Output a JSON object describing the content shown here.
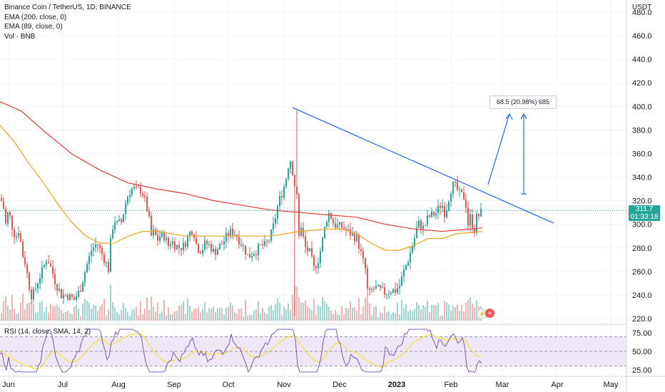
{
  "legend": {
    "title": "Binance Coin / TetherUS, 1D, BINANCE",
    "ema200": "EMA (200, close, 0)",
    "ema89": "EMA (89, close, 0)",
    "vol": "Vol · BNB",
    "rsi": "RSI (14, close, SMA, 14, 2)"
  },
  "currency": "USDT",
  "last_price": {
    "value": "311.7",
    "countdown": "01:33:18"
  },
  "annotation": "68.5 (20.98%) 685",
  "colors": {
    "up": "#26a69a",
    "down": "#ef5350",
    "ema200": "#e53935",
    "ema89": "#f7a21b",
    "trendline": "#2962ff",
    "rsi": "#7e57c2",
    "rsi_sma": "#f7e03d",
    "rsi_band": "#ede7f6"
  },
  "chart_data": {
    "type": "candlestick",
    "y_ticks": [
      "480.0",
      "460.0",
      "440.0",
      "420.0",
      "400.0",
      "380.0",
      "360.0",
      "340.0",
      "320.0",
      "300.0",
      "280.0",
      "260.0",
      "240.0",
      "220.0"
    ],
    "ylim": [
      215,
      485
    ],
    "x_ticks": [
      "Jun",
      "Jul",
      "Aug",
      "Sep",
      "Oct",
      "Nov",
      "Dec",
      "2023",
      "Feb",
      "Mar",
      "Apr",
      "May"
    ],
    "rsi_ticks": [
      "75.00",
      "50.00",
      "25.00"
    ],
    "close_path": [
      [
        0,
        322
      ],
      [
        4,
        318
      ],
      [
        8,
        300
      ],
      [
        12,
        312
      ],
      [
        16,
        300
      ],
      [
        20,
        292
      ],
      [
        24,
        290
      ],
      [
        28,
        300
      ],
      [
        30,
        270
      ],
      [
        34,
        276
      ],
      [
        36,
        260
      ],
      [
        38,
        258
      ],
      [
        40,
        250
      ],
      [
        44,
        240
      ],
      [
        48,
        242
      ],
      [
        52,
        250
      ],
      [
        56,
        256
      ],
      [
        60,
        262
      ],
      [
        66,
        272
      ],
      [
        72,
        262
      ],
      [
        78,
        250
      ],
      [
        86,
        240
      ],
      [
        94,
        240
      ],
      [
        104,
        236
      ],
      [
        112,
        244
      ],
      [
        120,
        262
      ],
      [
        128,
        278
      ],
      [
        136,
        284
      ],
      [
        142,
        276
      ],
      [
        148,
        268
      ],
      [
        152,
        262
      ],
      [
        156,
        292
      ],
      [
        160,
        304
      ],
      [
        164,
        300
      ],
      [
        170,
        302
      ],
      [
        176,
        318
      ],
      [
        180,
        326
      ],
      [
        184,
        330
      ],
      [
        188,
        330
      ],
      [
        192,
        328
      ],
      [
        196,
        330
      ],
      [
        200,
        326
      ],
      [
        204,
        318
      ],
      [
        208,
        308
      ],
      [
        212,
        290
      ],
      [
        216,
        294
      ],
      [
        220,
        286
      ],
      [
        224,
        290
      ],
      [
        230,
        290
      ],
      [
        236,
        282
      ],
      [
        240,
        286
      ],
      [
        246,
        282
      ],
      [
        252,
        280
      ],
      [
        258,
        282
      ],
      [
        264,
        290
      ],
      [
        268,
        296
      ],
      [
        272,
        292
      ],
      [
        276,
        280
      ],
      [
        282,
        278
      ],
      [
        288,
        284
      ],
      [
        294,
        282
      ],
      [
        300,
        276
      ],
      [
        306,
        280
      ],
      [
        312,
        284
      ],
      [
        318,
        290
      ],
      [
        324,
        294
      ],
      [
        330,
        292
      ],
      [
        336,
        286
      ],
      [
        342,
        280
      ],
      [
        348,
        272
      ],
      [
        354,
        276
      ],
      [
        360,
        278
      ],
      [
        366,
        282
      ],
      [
        372,
        282
      ],
      [
        378,
        288
      ],
      [
        384,
        300
      ],
      [
        390,
        318
      ],
      [
        396,
        328
      ],
      [
        400,
        336
      ],
      [
        404,
        350
      ],
      [
        408,
        356
      ],
      [
        412,
        334
      ],
      [
        416,
        326
      ],
      [
        418,
        288
      ],
      [
        422,
        296
      ],
      [
        428,
        280
      ],
      [
        434,
        276
      ],
      [
        440,
        262
      ],
      [
        446,
        270
      ],
      [
        450,
        280
      ],
      [
        456,
        300
      ],
      [
        460,
        310
      ],
      [
        464,
        306
      ],
      [
        468,
        300
      ],
      [
        474,
        298
      ],
      [
        480,
        298
      ],
      [
        486,
        294
      ],
      [
        492,
        292
      ],
      [
        496,
        290
      ],
      [
        500,
        288
      ],
      [
        504,
        280
      ],
      [
        508,
        270
      ],
      [
        512,
        262
      ],
      [
        516,
        238
      ],
      [
        520,
        244
      ],
      [
        526,
        246
      ],
      [
        532,
        244
      ],
      [
        540,
        242
      ],
      [
        548,
        244
      ],
      [
        554,
        244
      ],
      [
        560,
        248
      ],
      [
        566,
        260
      ],
      [
        572,
        270
      ],
      [
        576,
        278
      ],
      [
        580,
        286
      ],
      [
        584,
        296
      ],
      [
        588,
        302
      ],
      [
        592,
        296
      ],
      [
        596,
        300
      ],
      [
        600,
        306
      ],
      [
        606,
        308
      ],
      [
        612,
        310
      ],
      [
        616,
        316
      ],
      [
        620,
        316
      ],
      [
        624,
        308
      ],
      [
        628,
        320
      ],
      [
        632,
        330
      ],
      [
        636,
        334
      ],
      [
        640,
        330
      ],
      [
        644,
        326
      ],
      [
        648,
        324
      ],
      [
        652,
        322
      ],
      [
        656,
        300
      ],
      [
        660,
        308
      ],
      [
        664,
        292
      ],
      [
        668,
        306
      ],
      [
        672,
        308
      ],
      [
        676,
        312
      ]
    ],
    "ema200_path": [
      [
        0,
        404
      ],
      [
        30,
        396
      ],
      [
        60,
        380
      ],
      [
        100,
        360
      ],
      [
        140,
        346
      ],
      [
        180,
        335
      ],
      [
        220,
        330
      ],
      [
        260,
        326
      ],
      [
        300,
        320
      ],
      [
        340,
        316
      ],
      [
        380,
        312
      ],
      [
        420,
        310
      ],
      [
        460,
        308
      ],
      [
        500,
        306
      ],
      [
        540,
        300
      ],
      [
        580,
        296
      ],
      [
        620,
        294
      ],
      [
        660,
        296
      ],
      [
        676,
        297
      ]
    ],
    "ema89_path": [
      [
        0,
        384
      ],
      [
        20,
        370
      ],
      [
        40,
        352
      ],
      [
        60,
        336
      ],
      [
        80,
        318
      ],
      [
        100,
        302
      ],
      [
        120,
        290
      ],
      [
        140,
        284
      ],
      [
        160,
        284
      ],
      [
        180,
        290
      ],
      [
        200,
        294
      ],
      [
        220,
        294
      ],
      [
        260,
        290
      ],
      [
        300,
        290
      ],
      [
        340,
        290
      ],
      [
        380,
        290
      ],
      [
        420,
        294
      ],
      [
        460,
        296
      ],
      [
        480,
        296
      ],
      [
        500,
        292
      ],
      [
        520,
        284
      ],
      [
        540,
        278
      ],
      [
        560,
        278
      ],
      [
        580,
        282
      ],
      [
        600,
        288
      ],
      [
        620,
        288
      ],
      [
        640,
        292
      ],
      [
        660,
        293
      ],
      [
        676,
        294
      ]
    ],
    "trendline": [
      [
        410,
        399
      ],
      [
        776,
        301
      ]
    ],
    "projection": {
      "from": [
        684,
        259
      ],
      "to": [
        714,
        160
      ],
      "vertical_x": 734,
      "vertical_from": 272,
      "vertical_to": 160
    },
    "rsi_overbought": 70,
    "rsi_oversold": 30,
    "rsi_mid": 50
  }
}
